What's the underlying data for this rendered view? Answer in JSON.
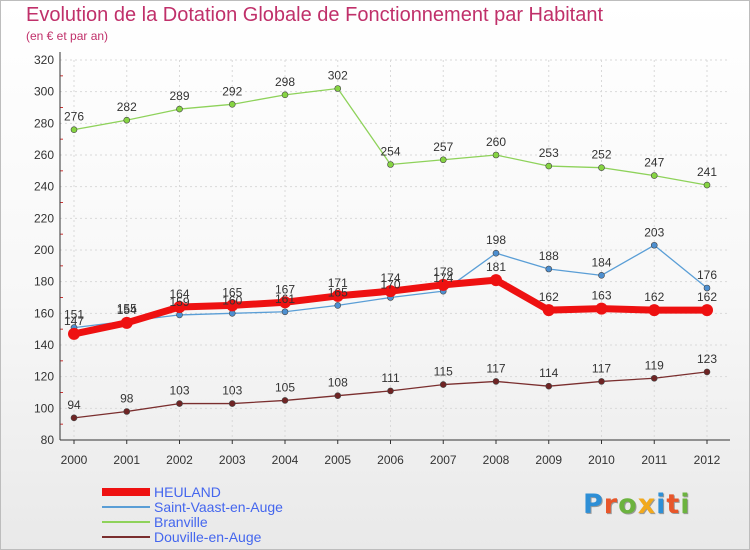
{
  "title": "Evolution de la Dotation Globale de Fonctionnement par Habitant",
  "subtitle": "(en € et par an)",
  "logo": {
    "text": "Proxiti",
    "letter_colors": [
      "#2e8fd6",
      "#e8562a",
      "#6cb33f",
      "#f2a91d",
      "#2e8fd6",
      "#e8562a",
      "#6cb33f"
    ]
  },
  "chart_data": {
    "type": "line",
    "categories": [
      "2000",
      "2001",
      "2002",
      "2003",
      "2004",
      "2005",
      "2006",
      "2007",
      "2008",
      "2009",
      "2010",
      "2011",
      "2012"
    ],
    "yticks": [
      "80",
      "100",
      "120",
      "140",
      "160",
      "180",
      "200",
      "220",
      "240",
      "260",
      "280",
      "300",
      "320"
    ],
    "ylim": [
      80,
      320
    ],
    "grid": true,
    "legend_position": "bottom-left",
    "series": [
      {
        "name": "Branville",
        "color": "#8ed25a",
        "marker_color": "#86d442",
        "values": [
          276,
          282,
          289,
          292,
          298,
          302,
          254,
          257,
          260,
          253,
          252,
          247,
          241
        ],
        "labels": [
          "276",
          "282",
          "289",
          "292",
          "298",
          "302",
          "254",
          "257",
          "260",
          "253",
          "252",
          "247",
          "241"
        ]
      },
      {
        "name": "Saint-Vaast-en-Auge",
        "color": "#5a9ed6",
        "marker_color": "#4d8fd0",
        "values": [
          151,
          155,
          159,
          160,
          161,
          165,
          170,
          174,
          198,
          188,
          184,
          203,
          176
        ],
        "labels": [
          "151",
          "155",
          "159",
          "160",
          "161",
          "165",
          "170",
          "174",
          "198",
          "188",
          "184",
          "203",
          "176"
        ]
      },
      {
        "name": "Douville-en-Auge",
        "color": "#7a2e2e",
        "marker_color": "#6f2424",
        "values": [
          94,
          98,
          103,
          103,
          105,
          108,
          111,
          115,
          117,
          114,
          117,
          119,
          123
        ],
        "labels": [
          "94",
          "98",
          "103",
          "103",
          "105",
          "108",
          "111",
          "115",
          "117",
          "114",
          "117",
          "119",
          "123"
        ]
      },
      {
        "name": "HEULAND",
        "color": "#ee1111",
        "marker_color": "#ee1111",
        "values": [
          147,
          154,
          164,
          165,
          167,
          171,
          174,
          178,
          181,
          162,
          163,
          162,
          162
        ],
        "labels": [
          "147",
          "154",
          "164",
          "165",
          "167",
          "171",
          "174",
          "178",
          "181",
          "162",
          "163",
          "162",
          "162"
        ]
      }
    ],
    "legend": [
      {
        "name": "HEULAND",
        "color": "#ee1111",
        "text_color": "#4466ee",
        "thick": true
      },
      {
        "name": "Saint-Vaast-en-Auge",
        "color": "#5a9ed6",
        "text_color": "#4466ee",
        "thick": false
      },
      {
        "name": "Branville",
        "color": "#8ed25a",
        "text_color": "#4466ee",
        "thick": false
      },
      {
        "name": "Douville-en-Auge",
        "color": "#7a2e2e",
        "text_color": "#4466ee",
        "thick": false
      }
    ]
  }
}
